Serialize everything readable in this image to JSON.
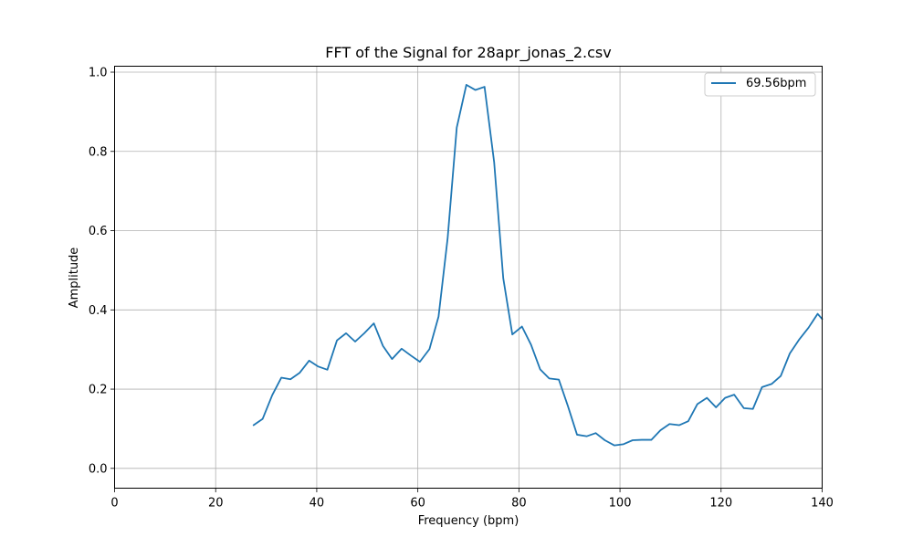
{
  "chart_data": {
    "type": "line",
    "title": "FFT of the Signal for 28apr_jonas_2.csv",
    "xlabel": "Frequency (bpm)",
    "ylabel": "Amplitude",
    "xlim": [
      0,
      140
    ],
    "ylim": [
      -0.05,
      1.015
    ],
    "xticks": [
      0,
      20,
      40,
      60,
      80,
      100,
      120,
      140
    ],
    "yticks": [
      0.0,
      0.2,
      0.4,
      0.6,
      0.8,
      1.0
    ],
    "xtick_labels": [
      "0",
      "20",
      "40",
      "60",
      "80",
      "100",
      "120",
      "140"
    ],
    "ytick_labels": [
      "0.0",
      "0.2",
      "0.4",
      "0.6",
      "0.8",
      "1.0"
    ],
    "grid": true,
    "legend_position": "top-right",
    "series": [
      {
        "name": "69.56bpm",
        "color": "#1f77b4",
        "x": [
          27.5,
          29.3,
          31.2,
          33.0,
          34.8,
          36.6,
          38.5,
          40.3,
          42.1,
          44.0,
          45.8,
          47.6,
          49.4,
          51.3,
          53.1,
          54.9,
          56.8,
          58.6,
          60.4,
          62.3,
          64.1,
          65.9,
          67.7,
          69.6,
          71.4,
          73.2,
          75.1,
          76.9,
          78.7,
          80.6,
          82.4,
          84.2,
          86.0,
          87.9,
          89.7,
          91.5,
          93.4,
          95.2,
          97.0,
          98.9,
          100.7,
          102.5,
          104.3,
          106.2,
          108.0,
          109.8,
          111.7,
          113.5,
          115.3,
          117.2,
          119.0,
          120.8,
          122.6,
          124.5,
          126.3,
          128.1,
          130.0,
          131.8,
          133.6,
          135.5,
          137.3,
          139.1,
          140.0
        ],
        "y": [
          0.109,
          0.125,
          0.185,
          0.229,
          0.225,
          0.241,
          0.272,
          0.257,
          0.249,
          0.323,
          0.341,
          0.32,
          0.341,
          0.366,
          0.309,
          0.276,
          0.302,
          0.285,
          0.269,
          0.301,
          0.383,
          0.581,
          0.86,
          0.968,
          0.955,
          0.963,
          0.773,
          0.48,
          0.338,
          0.358,
          0.312,
          0.25,
          0.227,
          0.224,
          0.157,
          0.085,
          0.081,
          0.089,
          0.071,
          0.058,
          0.061,
          0.071,
          0.072,
          0.072,
          0.096,
          0.112,
          0.109,
          0.119,
          0.162,
          0.178,
          0.154,
          0.178,
          0.186,
          0.152,
          0.15,
          0.205,
          0.213,
          0.233,
          0.29,
          0.326,
          0.355,
          0.39,
          0.377
        ]
      }
    ]
  }
}
